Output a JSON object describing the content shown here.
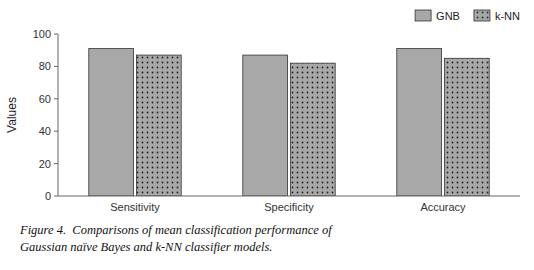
{
  "chart_data": {
    "type": "bar",
    "categories": [
      "Sensitivity",
      "Specificity",
      "Accuracy"
    ],
    "series": [
      {
        "name": "GNB",
        "color": "#a8a8a8",
        "values": [
          91,
          87,
          91
        ]
      },
      {
        "name": "k-NN",
        "color": "#a8a8a8",
        "values": [
          87,
          82,
          85
        ]
      }
    ],
    "ylabel": "Values",
    "ylim": [
      0,
      100
    ],
    "yticks": [
      0,
      20,
      40,
      60,
      80,
      100
    ],
    "grid": false,
    "legend": "upper right",
    "annotations": [
      "Figure 4.  Comparisons of mean classification performance of",
      "Gaussian naïve Bayes and k-NN classifier models."
    ]
  }
}
